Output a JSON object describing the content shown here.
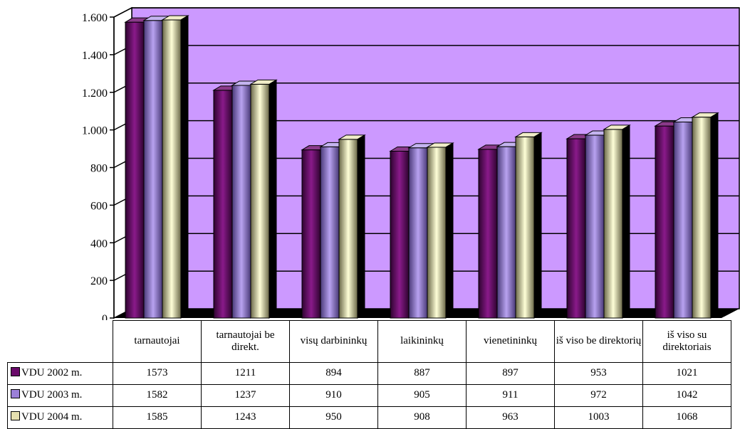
{
  "chart_data": {
    "type": "bar",
    "categories": [
      "tarnautojai",
      "tarnautojai be direkt.",
      "visų darbininkų",
      "laikininkų",
      "vienetininkų",
      "iš viso be direktorių",
      "iš viso su direktoriais"
    ],
    "series": [
      {
        "name": "VDU 2002 m.",
        "values": [
          1573,
          1211,
          894,
          887,
          897,
          953,
          1021
        ],
        "color": "#6a0a6a"
      },
      {
        "name": "VDU 2003 m.",
        "values": [
          1582,
          1237,
          910,
          905,
          911,
          972,
          1042
        ],
        "color": "#9b80d8"
      },
      {
        "name": "VDU 2004 m.",
        "values": [
          1585,
          1243,
          950,
          908,
          963,
          1003,
          1068
        ],
        "color": "#e6e0b0"
      }
    ],
    "ylim": [
      0,
      1600
    ],
    "yticks": [
      0,
      200,
      400,
      600,
      800,
      1000,
      1200,
      1400,
      1600
    ],
    "ytick_labels": [
      "0",
      "200",
      "400",
      "600",
      "800",
      "1.000",
      "1.200",
      "1.400",
      "1.600"
    ],
    "grid": true,
    "wall_color": "#cc99ff",
    "legend": "data table below chart"
  }
}
